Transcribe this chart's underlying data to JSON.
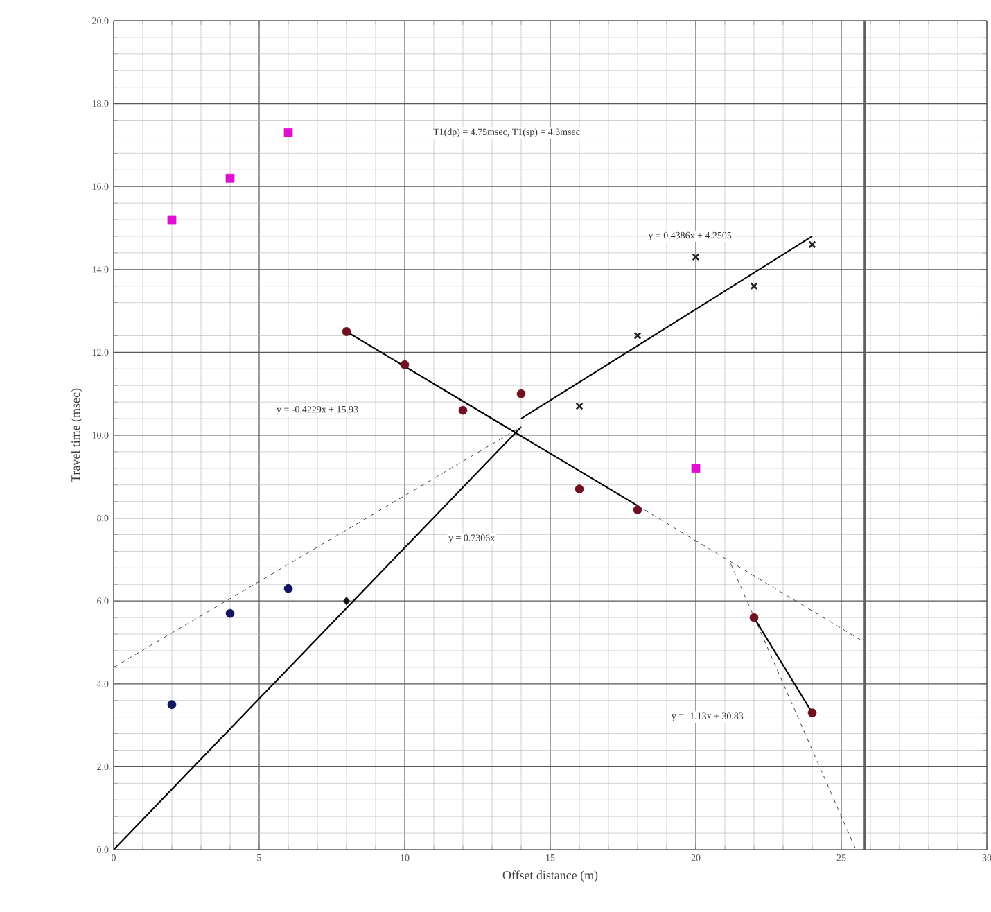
{
  "chart_data": {
    "type": "scatter",
    "xlabel": "Offset distance (m)",
    "ylabel": "Travel time (msec)",
    "xlim": [
      0,
      30
    ],
    "xticks": [
      0,
      5,
      10,
      15,
      20,
      25,
      30
    ],
    "ylim": [
      0,
      20
    ],
    "yticks": [
      {
        "value": 0,
        "label": "0.0"
      },
      {
        "value": 2,
        "label": "2.0"
      },
      {
        "value": 4,
        "label": "4.0"
      },
      {
        "value": 6,
        "label": "6.0"
      },
      {
        "value": 8,
        "label": "8.0"
      },
      {
        "value": 10,
        "label": "10.0"
      },
      {
        "value": 12,
        "label": "12.0"
      },
      {
        "value": 14,
        "label": "14.0"
      },
      {
        "value": 16,
        "label": "16.0"
      },
      {
        "value": 18,
        "label": "18.0"
      },
      {
        "value": 20,
        "label": "20.0"
      }
    ],
    "grid": true,
    "series": [
      {
        "marker": "square",
        "color": "#e010d0",
        "x": [
          2,
          4,
          6,
          20
        ],
        "values": [
          15.2,
          16.2,
          17.3,
          9.2
        ]
      },
      {
        "marker": "circle",
        "color": "#141460",
        "x": [
          2,
          4,
          6
        ],
        "values": [
          3.5,
          5.7,
          6.3
        ]
      },
      {
        "marker": "circle",
        "color": "#701020",
        "x": [
          8,
          10,
          12,
          14,
          16,
          18,
          22,
          24
        ],
        "values": [
          12.5,
          11.7,
          10.6,
          11.0,
          8.7,
          8.2,
          5.6,
          3.3
        ]
      },
      {
        "marker": "cross",
        "color": "#202020",
        "x": [
          16,
          18,
          20,
          22,
          24
        ],
        "values": [
          10.7,
          12.4,
          14.3,
          13.6,
          14.6
        ]
      },
      {
        "marker": "diamond",
        "color": "#101010",
        "x": [
          8
        ],
        "values": [
          6.0
        ]
      },
      {
        "type": "line",
        "line_style": "solid",
        "color": "#000000",
        "x": [
          0,
          14
        ],
        "values": [
          0,
          10.2
        ]
      },
      {
        "type": "line",
        "line_style": "solid",
        "color": "#000000",
        "x": [
          14,
          24
        ],
        "values": [
          10.4,
          14.8
        ]
      },
      {
        "type": "line",
        "line_style": "solid",
        "color": "#000000",
        "x": [
          8,
          18
        ],
        "values": [
          12.5,
          8.3
        ]
      },
      {
        "type": "line",
        "line_style": "solid",
        "color": "#000000",
        "x": [
          22,
          24
        ],
        "values": [
          5.6,
          3.3
        ]
      },
      {
        "type": "line",
        "line_style": "dashed",
        "color": "#404040",
        "x": [
          0,
          14
        ],
        "values": [
          4.4,
          10.2
        ]
      },
      {
        "type": "line",
        "line_style": "dashed",
        "color": "#404040",
        "x": [
          18,
          25.8
        ],
        "values": [
          8.3,
          5.0
        ]
      },
      {
        "type": "line",
        "line_style": "dashed",
        "color": "#404040",
        "x": [
          21.2,
          25.5
        ],
        "values": [
          6.9,
          0
        ]
      }
    ],
    "ref_lines": [
      {
        "axis": "x",
        "value": 25.8,
        "color": "#606060"
      }
    ],
    "annotations": [
      "T1(dp) = 4.75msec, T1(sp) = 4.3msec",
      "y = 0.4386x + 4.2505",
      "y = -0.4229x + 15.93",
      "y = 0.7306x",
      "y = -1.13x + 30.83"
    ]
  }
}
